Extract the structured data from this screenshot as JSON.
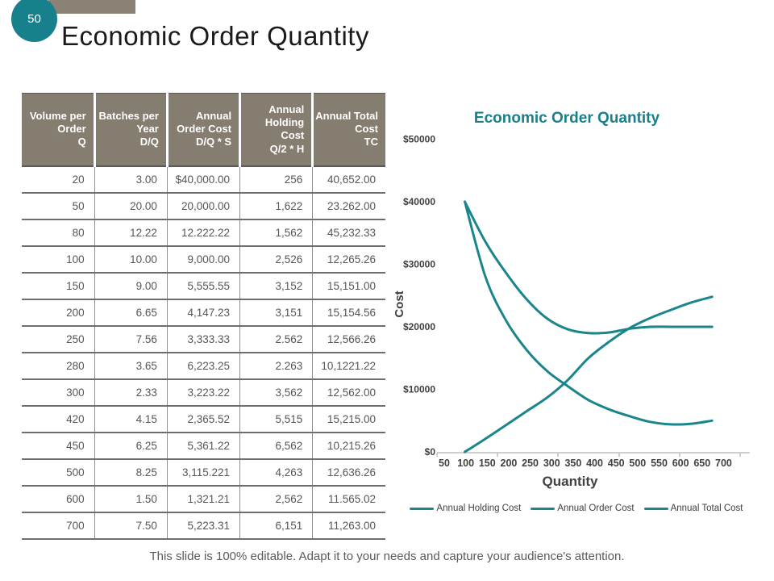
{
  "slide": {
    "badge_number": "50",
    "title": "Economic Order Quantity",
    "footer": "This slide is 100% editable. Adapt it to your needs and capture your audience's attention."
  },
  "colors": {
    "accent_teal": "#17808C",
    "line_teal": "#1A868C",
    "header_taupe": "#857D70",
    "table_text": "#565656",
    "axis_text": "#404040",
    "footer_text": "#595A5C"
  },
  "table": {
    "headers": [
      {
        "label": "Volume per Order",
        "formula": "Q"
      },
      {
        "label": "Batches per Year",
        "formula": "D/Q"
      },
      {
        "label": "Annual Order Cost",
        "formula": "D/Q * S"
      },
      {
        "label": "Annual Holding Cost",
        "formula": "Q/2 * H"
      },
      {
        "label": "Annual Total Cost",
        "formula": "TC"
      }
    ],
    "rows": [
      [
        "20",
        "3.00",
        "$40,000.00",
        "256",
        "40,652.00"
      ],
      [
        "50",
        "20.00",
        "20,000.00",
        "1,622",
        "23.262.00"
      ],
      [
        "80",
        "12.22",
        "12.222.22",
        "1,562",
        "45,232.33"
      ],
      [
        "100",
        "10.00",
        "9,000.00",
        "2,526",
        "12,265.26"
      ],
      [
        "150",
        "9.00",
        "5,555.55",
        "3,152",
        "15,151.00"
      ],
      [
        "200",
        "6.65",
        "4,147.23",
        "3,151",
        "15,154.56"
      ],
      [
        "250",
        "7.56",
        "3,333.33",
        "2.562",
        "12,566.26"
      ],
      [
        "280",
        "3.65",
        "6,223.25",
        "2.263",
        "10,1221.22"
      ],
      [
        "300",
        "2.33",
        "3,223.22",
        "3,562",
        "12,562.00"
      ],
      [
        "420",
        "4.15",
        "2,365.52",
        "5,515",
        "15,215.00"
      ],
      [
        "450",
        "6.25",
        "5,361.22",
        "6,562",
        "10,215.26"
      ],
      [
        "500",
        "8.25",
        "3,115.221",
        "4,263",
        "12,636.26"
      ],
      [
        "600",
        "1.50",
        "1,321.21",
        "2,562",
        "11.565.02"
      ],
      [
        "700",
        "7.50",
        "5,223.31",
        "6,151",
        "11,263.00"
      ]
    ]
  },
  "chart_data": {
    "type": "line",
    "title": "Economic Order Quantity",
    "xlabel": "Quantity",
    "ylabel": "Cost",
    "categories": [
      50,
      100,
      150,
      200,
      250,
      300,
      350,
      400,
      450,
      500,
      550,
      600,
      650,
      700
    ],
    "y_tick_labels": [
      "$0",
      "$10000",
      "$20000",
      "$30000",
      "$40000",
      "$50000"
    ],
    "ylim": [
      0,
      50000
    ],
    "grid": false,
    "legend_position": "bottom",
    "line_color": "#1A868C",
    "series": [
      {
        "name": "Annual Holding Cost",
        "values": [
          null,
          0,
          2100,
          4300,
          6500,
          8700,
          11500,
          15000,
          17600,
          19800,
          21400,
          22700,
          23900,
          24800
        ]
      },
      {
        "name": "Annual Order Cost",
        "values": [
          null,
          40000,
          28000,
          21000,
          16300,
          12900,
          10500,
          8300,
          6800,
          5700,
          4800,
          4400,
          4500,
          5000
        ]
      },
      {
        "name": "Annual Total Cost",
        "values": [
          null,
          40000,
          33600,
          28600,
          24400,
          21300,
          19600,
          19000,
          19100,
          19700,
          20000,
          20000,
          20000,
          20000
        ]
      }
    ]
  }
}
